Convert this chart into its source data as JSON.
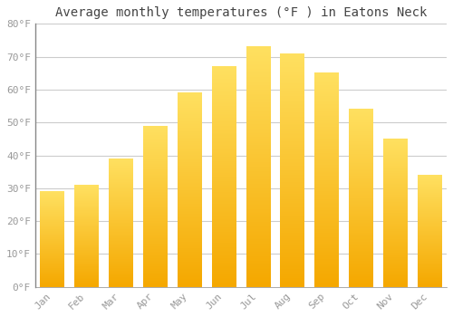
{
  "title": "Average monthly temperatures (°F ) in Eatons Neck",
  "months": [
    "Jan",
    "Feb",
    "Mar",
    "Apr",
    "May",
    "Jun",
    "Jul",
    "Aug",
    "Sep",
    "Oct",
    "Nov",
    "Dec"
  ],
  "values": [
    29,
    31,
    39,
    49,
    59,
    67,
    73,
    71,
    65,
    54,
    45,
    34
  ],
  "bar_color_bottom": "#F5A800",
  "bar_color_top": "#FFE060",
  "background_color": "#FFFFFF",
  "grid_color": "#CCCCCC",
  "tick_label_color": "#999999",
  "title_color": "#444444",
  "spine_color": "#888888",
  "ylim": [
    0,
    80
  ],
  "yticks": [
    0,
    10,
    20,
    30,
    40,
    50,
    60,
    70,
    80
  ],
  "ytick_labels": [
    "0°F",
    "10°F",
    "20°F",
    "30°F",
    "40°F",
    "50°F",
    "60°F",
    "70°F",
    "80°F"
  ],
  "title_fontsize": 10,
  "tick_fontsize": 8,
  "font_family": "monospace",
  "bar_width": 0.7,
  "figsize": [
    5.0,
    3.5
  ],
  "dpi": 100
}
